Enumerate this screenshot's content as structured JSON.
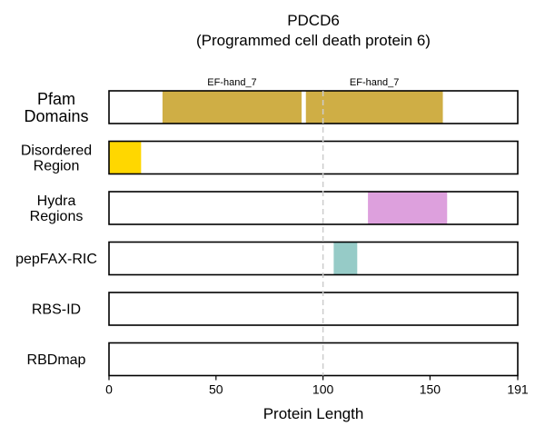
{
  "chart_data": {
    "type": "bar",
    "subtype": "protein-domain-tracks",
    "title": "PDCD6",
    "subtitle": "(Programmed cell death protein 6)",
    "xlabel": "Protein Length",
    "xlim": [
      0,
      191
    ],
    "xticks": [
      0,
      50,
      100,
      150,
      191
    ],
    "reference_line": {
      "x": 100,
      "style": "dashed",
      "color": "#cccccc"
    },
    "tracks": [
      {
        "label": [
          "Pfam",
          "Domains"
        ],
        "segments": [
          {
            "start": 25,
            "end": 90,
            "label": "EF-hand_7",
            "color": "#CFAE45"
          },
          {
            "start": 92,
            "end": 156,
            "label": "EF-hand_7",
            "color": "#CFAE45"
          }
        ]
      },
      {
        "label": [
          "Disordered",
          "Region"
        ],
        "segments": [
          {
            "start": 0,
            "end": 15,
            "color": "#FFD700"
          }
        ]
      },
      {
        "label": [
          "Hydra",
          "Regions"
        ],
        "segments": [
          {
            "start": 121,
            "end": 158,
            "color": "#DDA0DD"
          }
        ]
      },
      {
        "label": [
          "pepFAX-RIC"
        ],
        "segments": [
          {
            "start": 105,
            "end": 116,
            "color": "#96CBC7"
          }
        ]
      },
      {
        "label": [
          "RBS-ID"
        ],
        "segments": []
      },
      {
        "label": [
          "RBDmap"
        ],
        "segments": []
      }
    ]
  }
}
